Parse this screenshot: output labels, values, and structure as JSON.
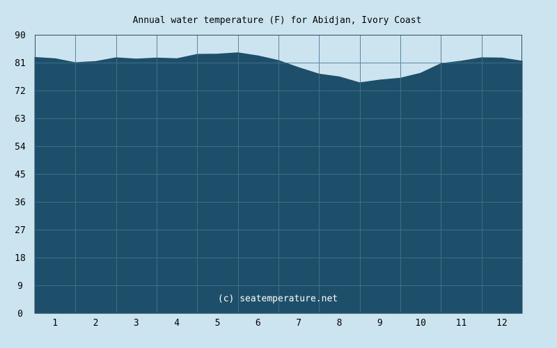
{
  "chart_data": {
    "type": "area",
    "title": "Annual water temperature (F) for Abidjan, Ivory Coast",
    "xlabel": "",
    "ylabel": "",
    "credit": "(c) seatemperature.net",
    "x_categories": [
      "1",
      "2",
      "3",
      "4",
      "5",
      "6",
      "7",
      "8",
      "9",
      "10",
      "11",
      "12"
    ],
    "x_range": [
      0,
      12
    ],
    "y_ticks": [
      "0",
      "9",
      "18",
      "27",
      "36",
      "45",
      "54",
      "63",
      "72",
      "81",
      "90"
    ],
    "ylim": [
      0,
      90
    ],
    "grid": true,
    "series": [
      {
        "x": [
          0,
          0.5,
          1,
          1.5,
          2,
          2.5,
          3,
          3.5,
          4,
          4.5,
          5,
          5.5,
          6,
          6.5,
          7,
          7.5,
          8,
          8.5,
          9,
          9.5,
          10,
          10.5,
          11,
          11.5,
          12
        ],
        "values": [
          82.7,
          82.3,
          81.0,
          81.4,
          82.6,
          82.2,
          82.5,
          82.3,
          83.7,
          83.8,
          84.2,
          83.2,
          81.7,
          79.4,
          77.3,
          76.4,
          74.5,
          75.4,
          76.0,
          77.6,
          80.7,
          81.5,
          82.6,
          82.5,
          81.5
        ]
      }
    ],
    "colors": {
      "background": "#cce4f0",
      "plot_background": "#cce4f0",
      "fill": "#1e4f6a",
      "grid": "#5a86a1",
      "border": "#2d4f63"
    }
  }
}
